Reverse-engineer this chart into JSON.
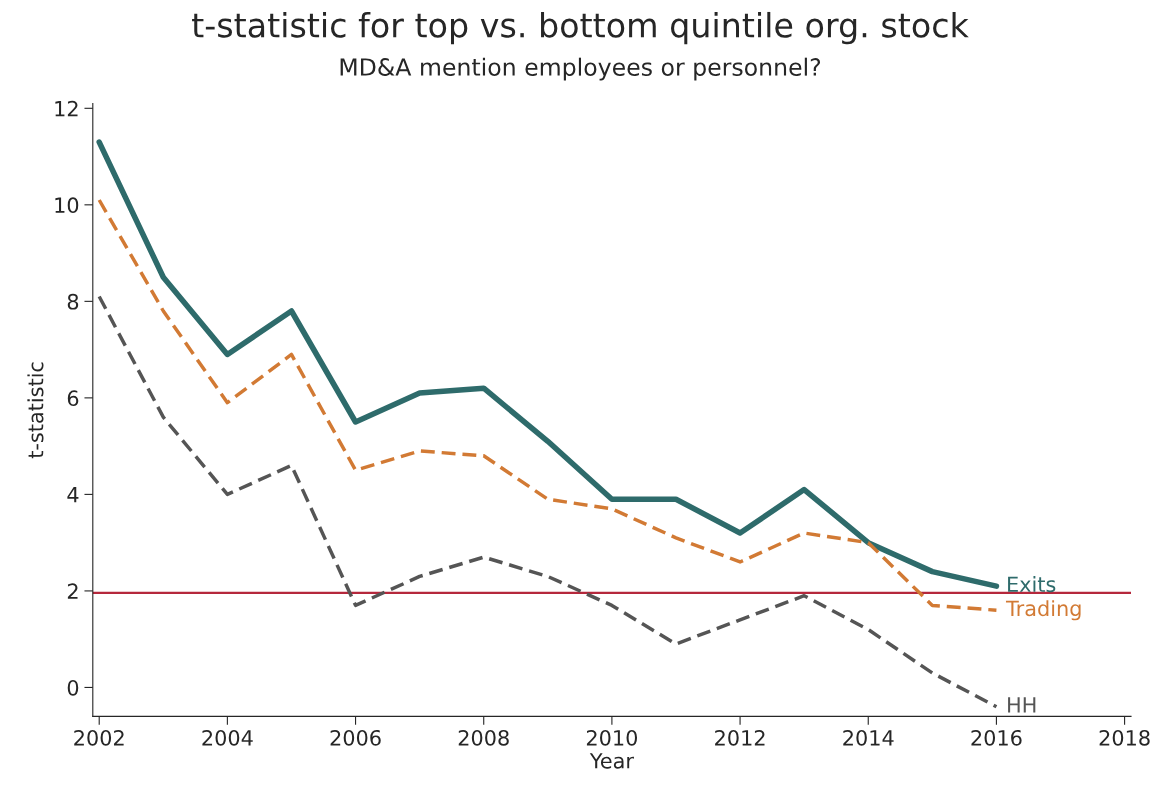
{
  "chart_data": {
    "type": "line",
    "title": "t-statistic for top vs. bottom quintile org. stock",
    "subtitle": "MD&A mention employees or personnel?",
    "xlabel": "Year",
    "ylabel": "t-statistic",
    "x": [
      2002,
      2003,
      2004,
      2005,
      2006,
      2007,
      2008,
      2009,
      2010,
      2011,
      2012,
      2013,
      2014,
      2015,
      2016
    ],
    "series": [
      {
        "name": "Exits",
        "color": "#2e6b6b",
        "line_style": "solid",
        "values": [
          11.3,
          8.5,
          6.9,
          7.8,
          5.5,
          6.1,
          6.2,
          5.1,
          3.9,
          3.9,
          3.2,
          4.1,
          3.0,
          2.4,
          2.1
        ]
      },
      {
        "name": "Trading",
        "color": "#d27a34",
        "line_style": "dashed",
        "values": [
          10.1,
          7.8,
          5.9,
          6.9,
          4.5,
          4.9,
          4.8,
          3.9,
          3.7,
          3.1,
          2.6,
          3.2,
          3.0,
          1.7,
          1.6
        ]
      },
      {
        "name": "HH",
        "color": "#555555",
        "line_style": "dashed",
        "values": [
          8.1,
          5.6,
          4.0,
          4.6,
          1.7,
          2.3,
          2.7,
          2.3,
          1.7,
          0.9,
          1.4,
          1.9,
          1.2,
          0.3,
          -0.4
        ]
      }
    ],
    "ref_lines": [
      {
        "axis": "y",
        "value": 1.96,
        "color": "#b5283c"
      }
    ],
    "xlim": [
      2001.9,
      2018.1
    ],
    "xticks": [
      2002,
      2004,
      2006,
      2008,
      2010,
      2012,
      2014,
      2016,
      2018
    ],
    "ylim": [
      -0.6,
      12.1
    ],
    "yticks": [
      0,
      2,
      4,
      6,
      8,
      10,
      12
    ],
    "grid": false,
    "legend": false
  }
}
